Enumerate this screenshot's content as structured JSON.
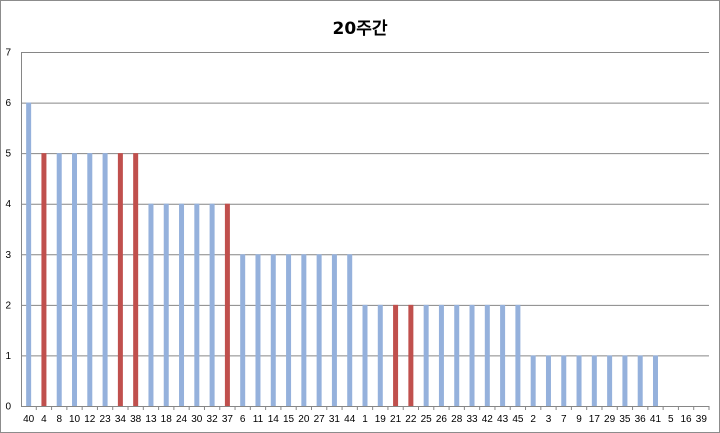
{
  "chart_data": {
    "type": "bar",
    "title": "20주간",
    "xlabel": "",
    "ylabel": "",
    "ylim": [
      0,
      7
    ],
    "yticks": [
      0,
      1,
      2,
      3,
      4,
      5,
      6,
      7
    ],
    "grid": true,
    "legend": "none",
    "categories": [
      "40",
      "4",
      "8",
      "10",
      "12",
      "23",
      "34",
      "38",
      "13",
      "18",
      "24",
      "30",
      "32",
      "37",
      "6",
      "11",
      "14",
      "15",
      "20",
      "27",
      "31",
      "44",
      "1",
      "19",
      "21",
      "22",
      "25",
      "26",
      "28",
      "33",
      "42",
      "43",
      "45",
      "2",
      "3",
      "7",
      "9",
      "17",
      "29",
      "35",
      "36",
      "41",
      "5",
      "16",
      "39"
    ],
    "values": [
      6,
      5,
      5,
      5,
      5,
      5,
      5,
      5,
      4,
      4,
      4,
      4,
      4,
      4,
      3,
      3,
      3,
      3,
      3,
      3,
      3,
      3,
      2,
      2,
      2,
      2,
      2,
      2,
      2,
      2,
      2,
      2,
      2,
      1,
      1,
      1,
      1,
      1,
      1,
      1,
      1,
      1,
      0,
      0,
      0
    ],
    "highlighted": [
      "4",
      "34",
      "38",
      "37",
      "21",
      "22"
    ],
    "colors": {
      "default_bar": "#95b1dc",
      "highlight_bar": "#c0504d",
      "gridline": "#868686",
      "axis": "#868686"
    }
  }
}
